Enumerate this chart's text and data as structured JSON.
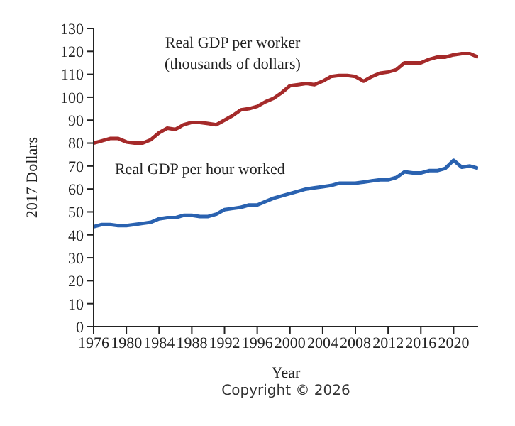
{
  "chart_data": {
    "type": "line",
    "xlabel": "Year",
    "ylabel": "2017 Dollars",
    "x": [
      1976,
      1977,
      1978,
      1979,
      1980,
      1981,
      1982,
      1983,
      1984,
      1985,
      1986,
      1987,
      1988,
      1989,
      1990,
      1991,
      1992,
      1993,
      1994,
      1995,
      1996,
      1997,
      1998,
      1999,
      2000,
      2001,
      2002,
      2003,
      2004,
      2005,
      2006,
      2007,
      2008,
      2009,
      2010,
      2011,
      2012,
      2013,
      2014,
      2015,
      2016,
      2017,
      2018,
      2019,
      2020,
      2021,
      2022,
      2023
    ],
    "series": [
      {
        "name": "Real GDP per worker (thousands of dollars)",
        "color": "#a52a2a",
        "values": [
          80,
          81,
          82,
          82,
          80.5,
          80,
          80,
          81.5,
          84.5,
          86.5,
          86,
          88,
          89,
          89,
          88.5,
          88,
          90,
          92,
          94.5,
          95,
          96,
          98,
          99.5,
          102,
          105,
          105.5,
          106,
          105.5,
          107,
          109,
          109.5,
          109.5,
          109,
          107,
          109,
          110.5,
          111,
          112,
          115,
          115,
          115,
          116.5,
          117.5,
          117.5,
          118.5,
          119,
          119,
          117.5
        ]
      },
      {
        "name": "Real GDP per hour worked",
        "color": "#2a62b0",
        "values": [
          43.5,
          44.5,
          44.5,
          44,
          44,
          44.5,
          45,
          45.5,
          47,
          47.5,
          47.5,
          48.5,
          48.5,
          48,
          48,
          49,
          51,
          51.5,
          52,
          53,
          53,
          54.5,
          56,
          57,
          58,
          59,
          60,
          60.5,
          61,
          61.5,
          62.5,
          62.5,
          62.5,
          63,
          63.5,
          64,
          64,
          65,
          67.5,
          67,
          67,
          68,
          68,
          69,
          72.5,
          69.5,
          70,
          69
        ]
      }
    ],
    "xlim": [
      1976,
      2023
    ],
    "xticks": [
      1976,
      1980,
      1984,
      1988,
      1992,
      1996,
      2000,
      2004,
      2008,
      2012,
      2016,
      2020
    ],
    "ylim": [
      0,
      130
    ],
    "yticks": [
      0,
      10,
      20,
      30,
      40,
      50,
      60,
      70,
      80,
      90,
      100,
      110,
      120,
      130
    ],
    "marker": "none",
    "line_style": "solid",
    "annotations": [
      "Copyright © 2026"
    ]
  }
}
